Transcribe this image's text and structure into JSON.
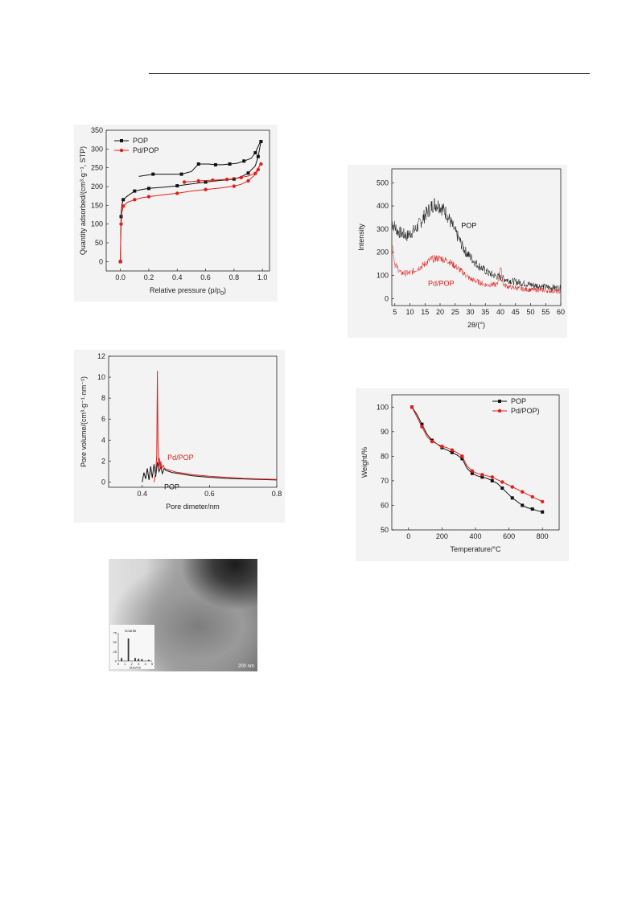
{
  "chart_data": [
    {
      "id": "isotherm",
      "type": "line",
      "title": "",
      "xlabel": "Relative pressure  (p/p",
      "xlabel_sub": "0",
      "xlabel_end": ")",
      "ylabel": "Quantity adsorbed/(cm³·g⁻¹, STP)",
      "xlim": [
        -0.1,
        1.05
      ],
      "ylim": [
        -25,
        350
      ],
      "xticks": [
        0.0,
        0.2,
        0.4,
        0.6,
        0.8,
        1.0
      ],
      "xtick_labels": [
        "0.0",
        "0.2",
        "0.4",
        "0.6",
        "0.8",
        "1.0"
      ],
      "yticks": [
        0,
        50,
        100,
        150,
        200,
        250,
        300,
        350
      ],
      "legend_position": "top-left",
      "series": [
        {
          "name": "POP",
          "color": "#111111",
          "marker": "square",
          "x": [
            0.0,
            0.002,
            0.005,
            0.01,
            0.02,
            0.05,
            0.1,
            0.15,
            0.2,
            0.3,
            0.4,
            0.5,
            0.6,
            0.7,
            0.8,
            0.85,
            0.9,
            0.95,
            0.97,
            0.98,
            0.99,
            0.98,
            0.95,
            0.92,
            0.87,
            0.82,
            0.77,
            0.72,
            0.67,
            0.62,
            0.55,
            0.5,
            0.43,
            0.33,
            0.23,
            0.13
          ],
          "y": [
            0,
            60,
            120,
            150,
            165,
            175,
            188,
            192,
            195,
            198,
            202,
            207,
            212,
            216,
            220,
            226,
            236,
            255,
            280,
            300,
            320,
            315,
            290,
            275,
            268,
            262,
            260,
            258,
            258,
            260,
            260,
            240,
            233,
            233,
            233,
            227
          ]
        },
        {
          "name": "Pd/POP",
          "color": "#e0201c",
          "marker": "circle",
          "x": [
            0.0,
            0.002,
            0.005,
            0.01,
            0.02,
            0.05,
            0.1,
            0.15,
            0.2,
            0.3,
            0.4,
            0.5,
            0.6,
            0.7,
            0.8,
            0.85,
            0.9,
            0.95,
            0.97,
            0.98,
            0.99,
            0.98,
            0.95,
            0.9,
            0.85,
            0.8,
            0.75,
            0.7,
            0.65,
            0.6,
            0.55,
            0.5,
            0.45
          ],
          "y": [
            0,
            50,
            100,
            130,
            148,
            158,
            165,
            170,
            173,
            178,
            182,
            188,
            192,
            196,
            201,
            206,
            215,
            232,
            245,
            255,
            260,
            255,
            235,
            228,
            224,
            221,
            219,
            218,
            217,
            216,
            215,
            213,
            212
          ]
        }
      ]
    },
    {
      "id": "xrd",
      "type": "line",
      "title": "",
      "xlabel": "2θ/(°)",
      "ylabel": "Intensity",
      "xlim": [
        4,
        60
      ],
      "ylim": [
        -30,
        560
      ],
      "xticks": [
        5,
        10,
        15,
        20,
        25,
        30,
        35,
        40,
        45,
        50,
        55,
        60
      ],
      "yticks": [
        0,
        100,
        200,
        300,
        400,
        500
      ],
      "series": [
        {
          "name": "POP",
          "color": "#111111",
          "noise": 45,
          "x": [
            4,
            6,
            9,
            12,
            15,
            18,
            20,
            22,
            25,
            28,
            32,
            36,
            40,
            44,
            50,
            55,
            60
          ],
          "y": [
            330,
            290,
            270,
            300,
            360,
            410,
            400,
            370,
            290,
            210,
            150,
            110,
            90,
            75,
            60,
            50,
            45
          ]
        },
        {
          "name": "Pd/POP",
          "color": "#e0201c",
          "noise": 35,
          "x": [
            4,
            5,
            7,
            10,
            14,
            17,
            20,
            23,
            26,
            30,
            35,
            39,
            40,
            41,
            43,
            48,
            55,
            60
          ],
          "y": [
            250,
            150,
            110,
            110,
            140,
            170,
            175,
            160,
            130,
            85,
            60,
            60,
            140,
            60,
            50,
            40,
            35,
            30
          ]
        }
      ]
    },
    {
      "id": "pore",
      "type": "line",
      "title": "",
      "xlabel": "Pore dimeter/nm",
      "ylabel": "Pore volume/(cm³·g⁻¹·nm⁻¹)",
      "xlim": [
        0.3,
        0.8
      ],
      "ylim": [
        -0.5,
        12
      ],
      "xticks": [
        0.4,
        0.6,
        0.8
      ],
      "yticks": [
        0,
        2,
        4,
        6,
        8,
        10,
        12
      ],
      "series": [
        {
          "name": "POP",
          "color": "#111111",
          "x": [
            0.4,
            0.405,
            0.41,
            0.415,
            0.42,
            0.425,
            0.43,
            0.435,
            0.44,
            0.445,
            0.45,
            0.455,
            0.46,
            0.465,
            0.47,
            0.48,
            0.49,
            0.5,
            0.52,
            0.55,
            0.6,
            0.65,
            0.7,
            0.75,
            0.8
          ],
          "y": [
            0.0,
            0.9,
            0.3,
            1.3,
            0.2,
            1.5,
            0.4,
            1.7,
            0.5,
            1.9,
            1.0,
            1.4,
            0.8,
            1.3,
            1.1,
            1.0,
            0.9,
            0.85,
            0.75,
            0.6,
            0.45,
            0.35,
            0.3,
            0.25,
            0.2
          ]
        },
        {
          "name": "Pd/POP",
          "color": "#e0201c",
          "x": [
            0.435,
            0.44,
            0.443,
            0.445,
            0.447,
            0.449,
            0.451,
            0.453,
            0.455,
            0.458,
            0.462,
            0.466,
            0.47,
            0.48,
            0.49,
            0.5,
            0.52,
            0.55,
            0.6,
            0.65,
            0.7,
            0.75,
            0.8
          ],
          "y": [
            0.0,
            0.9,
            2.6,
            10.6,
            3.8,
            1.5,
            2.3,
            1.2,
            2.0,
            1.3,
            1.6,
            1.3,
            1.25,
            1.15,
            1.05,
            0.95,
            0.85,
            0.7,
            0.55,
            0.45,
            0.35,
            0.3,
            0.25
          ]
        }
      ],
      "annotations": [
        {
          "text": "Pd/POP",
          "color": "#e0201c"
        },
        {
          "text": "POP",
          "color": "#111111"
        }
      ]
    },
    {
      "id": "tga",
      "type": "line",
      "title": "",
      "xlabel": "Temperature/°C",
      "ylabel": "Weight/%",
      "xlim": [
        -100,
        900
      ],
      "ylim": [
        50,
        105
      ],
      "xticks": [
        0,
        200,
        400,
        600,
        800
      ],
      "yticks": [
        50,
        60,
        70,
        80,
        90,
        100
      ],
      "legend_position": "top-right",
      "series": [
        {
          "name": "POP",
          "color": "#111111",
          "marker": "square",
          "x": [
            20,
            50,
            80,
            110,
            140,
            170,
            200,
            230,
            260,
            290,
            320,
            350,
            380,
            410,
            440,
            470,
            500,
            530,
            560,
            590,
            620,
            650,
            680,
            710,
            740,
            770,
            800
          ],
          "y": [
            100,
            97,
            93,
            89,
            86.5,
            85,
            83.5,
            82.5,
            81.5,
            80.5,
            79,
            75,
            73,
            72,
            71.5,
            71,
            70,
            69,
            67,
            65,
            63,
            61.5,
            60,
            59,
            58.5,
            57.8,
            57.3
          ]
        },
        {
          "name": "Pd/POP)",
          "color": "#e0201c",
          "marker": "circle",
          "x": [
            20,
            50,
            80,
            110,
            140,
            170,
            200,
            230,
            260,
            290,
            320,
            350,
            380,
            410,
            440,
            470,
            500,
            530,
            560,
            590,
            620,
            650,
            680,
            710,
            740,
            770,
            800
          ],
          "y": [
            100,
            96,
            92,
            88,
            86,
            85,
            84,
            83.5,
            82.5,
            81.5,
            80,
            76,
            74,
            73,
            72.5,
            72,
            71.5,
            70.5,
            69.5,
            68.5,
            67.5,
            66.5,
            65.5,
            64.5,
            63.5,
            62.5,
            61.5
          ]
        }
      ]
    },
    {
      "id": "histogram",
      "type": "bar",
      "title": "Counts",
      "xlabel": "Size/nm",
      "categories": [
        "0",
        "1",
        "2",
        "3",
        "4",
        "5"
      ],
      "xticks": [
        0,
        1,
        2,
        3,
        4,
        5
      ],
      "yticks": [
        0,
        25,
        50,
        75
      ],
      "bars": [
        {
          "x": 0.5,
          "value": 8
        },
        {
          "x": 1.5,
          "value": 60
        },
        {
          "x": 2.5,
          "value": 8
        },
        {
          "x": 3.0,
          "value": 6
        },
        {
          "x": 3.5,
          "value": 5
        },
        {
          "x": 4.5,
          "value": 3
        }
      ],
      "scale_bar": "200 nm"
    }
  ]
}
